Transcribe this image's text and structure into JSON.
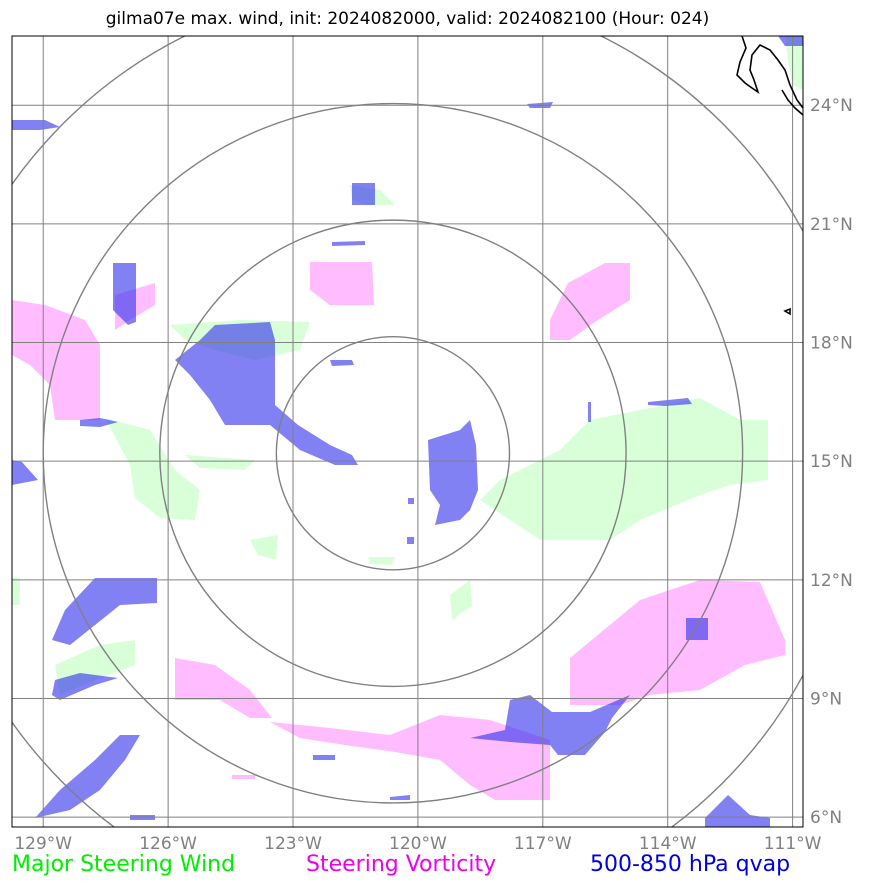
{
  "title": "gilma07e max. wind, init: 2024082000, valid: 2024082100 (Hour: 024)",
  "map": {
    "lon_range": [
      -129.75,
      -110.75
    ],
    "lat_range": [
      5.75,
      25.75
    ],
    "lon_ticks": [
      {
        "value": -129,
        "label": "129°W"
      },
      {
        "value": -126,
        "label": "126°W"
      },
      {
        "value": -123,
        "label": "123°W"
      },
      {
        "value": -120,
        "label": "120°W"
      },
      {
        "value": -117,
        "label": "117°W"
      },
      {
        "value": -114,
        "label": "114°W"
      },
      {
        "value": -111,
        "label": "111°W"
      }
    ],
    "lat_ticks": [
      {
        "value": 6,
        "label": "6°N"
      },
      {
        "value": 9,
        "label": "9°N"
      },
      {
        "value": 12,
        "label": "12°N"
      },
      {
        "value": 15,
        "label": "15°N"
      },
      {
        "value": 18,
        "label": "18°N"
      },
      {
        "value": 21,
        "label": "21°N"
      },
      {
        "value": 24,
        "label": "24°N"
      }
    ],
    "range_rings_center": {
      "lon": -120.6,
      "lat": 15.2
    },
    "range_rings_deg": [
      2.8,
      5.6,
      8.4,
      11.2
    ],
    "colors": {
      "grid": "#808080",
      "rings": "#808080",
      "coast": "#000000",
      "steering_wind": "#ccffcc",
      "steering_vorticity": "#ff99ff",
      "qvap": "#3333ee"
    }
  },
  "legend": {
    "steering_wind": {
      "label": "Major Steering Wind",
      "color": "#00ee00"
    },
    "steering_vorticity": {
      "label": "Steering Vorticity",
      "color": "#ee00ee"
    },
    "qvap": {
      "label": "500-850 hPa qvap",
      "color": "#0000dd"
    }
  }
}
